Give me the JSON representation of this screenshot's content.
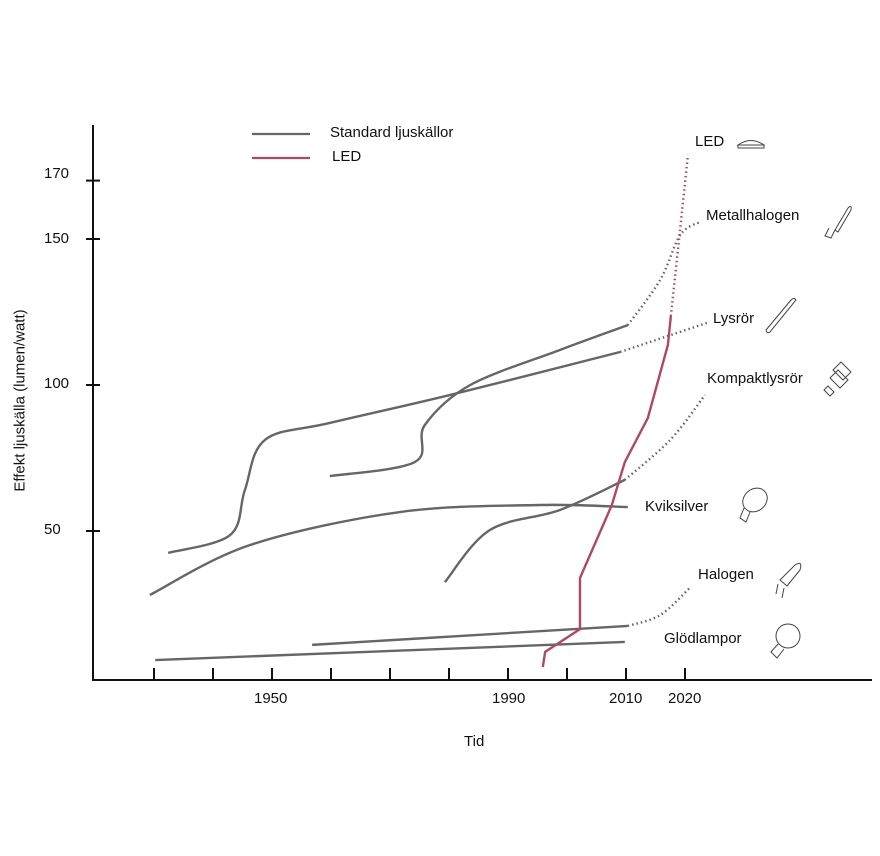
{
  "chart_data": {
    "type": "line",
    "title": "",
    "xlabel": "Tid",
    "ylabel": "Effekt ljuskälla (lumen/watt)",
    "xlim": [
      1920,
      2050
    ],
    "ylim": [
      0,
      190
    ],
    "x_ticks": [
      1930,
      1940,
      1950,
      1960,
      1970,
      1980,
      1990,
      2000,
      2010,
      2020
    ],
    "x_tick_labels": [
      "1950",
      "1990",
      "2010",
      "2020"
    ],
    "x_tick_label_values": [
      1950,
      1990,
      2010,
      2020
    ],
    "y_tick_labels": [
      "170",
      "150",
      "100",
      "50"
    ],
    "y_tick_values": [
      170,
      150,
      100,
      50
    ],
    "legend": {
      "placement": "top-left",
      "entries": [
        {
          "label": "Standard ljuskällor",
          "color": "#666666"
        },
        {
          "label": "LED",
          "color": "#b0466a"
        }
      ]
    },
    "series": [
      {
        "name": "Lysrör",
        "group": "Standard ljuskällor",
        "color": "#666666",
        "solid": [
          [
            1932.4,
            42.5
          ],
          [
            1942.9,
            48.6
          ],
          [
            1945.4,
            64
          ],
          [
            1948.8,
            81.2
          ],
          [
            1959.8,
            87
          ],
          [
            1980.2,
            96.6
          ],
          [
            2009,
            111.3
          ]
        ],
        "projected": [
          [
            2009,
            111.3
          ],
          [
            2024.2,
            121.6
          ]
        ]
      },
      {
        "name": "Metallhalogen",
        "group": "Standard ljuskällor",
        "color": "#666666",
        "solid": [
          [
            1959.8,
            68.8
          ],
          [
            1974.2,
            73.6
          ],
          [
            1975.9,
            86.3
          ],
          [
            1983.6,
            100
          ],
          [
            1998.8,
            112
          ],
          [
            2010.3,
            120.5
          ]
        ],
        "projected": [
          [
            2010.3,
            120.5
          ],
          [
            2015.8,
            136
          ],
          [
            2019.2,
            151.4
          ],
          [
            2022.5,
            155.8
          ]
        ]
      },
      {
        "name": "Kviksilver",
        "group": "Standard ljuskällor",
        "color": "#666666",
        "solid": [
          [
            1929.3,
            28.1
          ],
          [
            1946.3,
            45.2
          ],
          [
            1971.7,
            56.5
          ],
          [
            1995.4,
            58.9
          ],
          [
            2010.3,
            58.2
          ]
        ],
        "projected": []
      },
      {
        "name": "Kompaktlysrör",
        "group": "Standard ljuskällor",
        "color": "#666666",
        "solid": [
          [
            1979.3,
            32.5
          ],
          [
            1986.9,
            50.3
          ],
          [
            1998.8,
            57.2
          ],
          [
            2009.8,
            67.5
          ]
        ],
        "projected": [
          [
            2009.8,
            67.5
          ],
          [
            2017.5,
            81.2
          ],
          [
            2023.4,
            96.6
          ]
        ]
      },
      {
        "name": "Halogen",
        "group": "Standard ljuskällor",
        "color": "#666666",
        "solid": [
          [
            1956.8,
            11
          ],
          [
            2010.3,
            17.5
          ]
        ],
        "projected": [
          [
            2010.3,
            17.5
          ],
          [
            2015.8,
            21.2
          ],
          [
            2020.8,
            30.5
          ]
        ]
      },
      {
        "name": "Glödlampor",
        "group": "Standard ljuskällor",
        "color": "#666666",
        "solid": [
          [
            1930.2,
            5.8
          ],
          [
            2009.8,
            12
          ]
        ],
        "projected": []
      },
      {
        "name": "LED",
        "group": "LED",
        "color": "#b0466a",
        "linear": true,
        "solid": [
          [
            1995.9,
            3.4
          ],
          [
            1996.3,
            8.6
          ],
          [
            2002.2,
            16.4
          ],
          [
            2002.2,
            33.9
          ],
          [
            2007.6,
            58.9
          ],
          [
            2009.8,
            73.6
          ],
          [
            2013.7,
            88.7
          ],
          [
            2017.1,
            113.7
          ],
          [
            2017.6,
            123.6
          ]
        ],
        "projected": [
          [
            2017.6,
            123.6
          ],
          [
            2018.8,
            146.2
          ],
          [
            2020.5,
            178.8
          ]
        ]
      }
    ],
    "annotations": [
      "LED",
      "Metallhalogen",
      "Lysrör",
      "Kompaktlysrör",
      "Kviksilver",
      "Halogen",
      "Glödlampor"
    ]
  }
}
